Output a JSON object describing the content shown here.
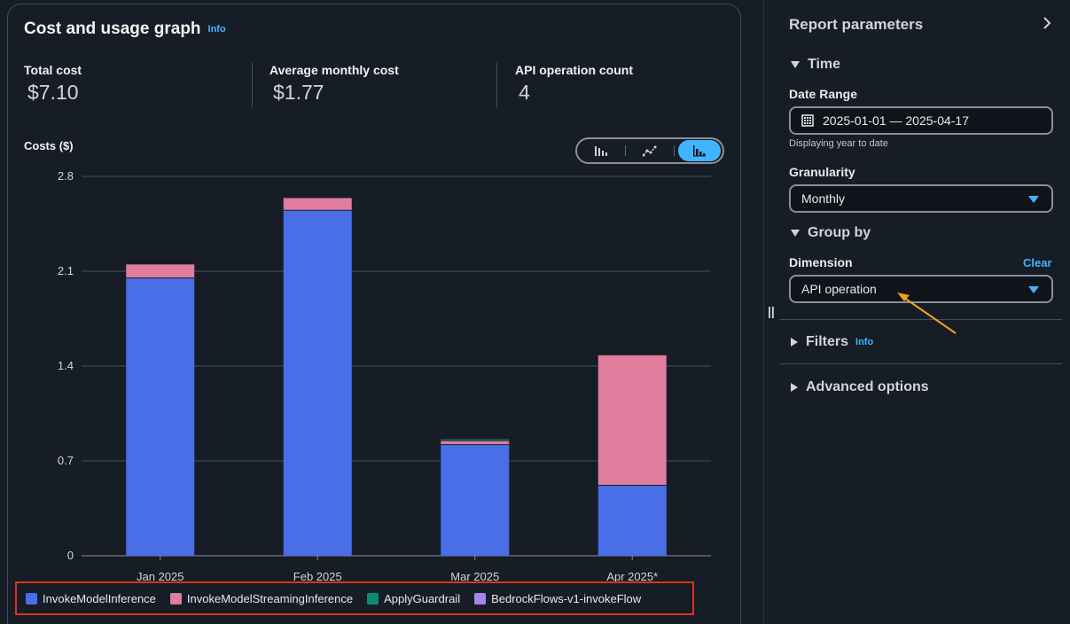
{
  "graph": {
    "title": "Cost and usage graph",
    "info_label": "Info",
    "stats": [
      {
        "label": "Total cost",
        "value": "$7.10"
      },
      {
        "label": "Average monthly cost",
        "value": "$1.77"
      },
      {
        "label": "API operation count",
        "value": "4"
      }
    ],
    "costs_label": "Costs ($)",
    "chart_types": [
      "bar-chart-icon",
      "line-chart-icon",
      "stacked-bar-chart-icon"
    ],
    "selected_chart_type": "stacked-bar-chart-icon"
  },
  "chart_data": {
    "type": "bar",
    "stacked": true,
    "categories": [
      "Jan 2025",
      "Feb 2025",
      "Mar 2025",
      "Apr 2025*"
    ],
    "series": [
      {
        "name": "InvokeModelInference",
        "color": "#4a6ee8",
        "values": [
          2.05,
          2.55,
          0.82,
          0.52
        ]
      },
      {
        "name": "InvokeModelStreamingInference",
        "color": "#e07c9e",
        "values": [
          0.1,
          0.09,
          0.03,
          0.96
        ]
      },
      {
        "name": "ApplyGuardrail",
        "color": "#0f8a72",
        "values": [
          0.0,
          0.0,
          0.01,
          0.0
        ]
      },
      {
        "name": "BedrockFlows-v1-invokeFlow",
        "color": "#a882ef",
        "values": [
          0.0,
          0.0,
          0.0,
          0.0
        ]
      }
    ],
    "yticks": [
      "0",
      "0.7",
      "1.4",
      "2.1",
      "2.8"
    ],
    "ylim": [
      0,
      2.8
    ],
    "ylabel": "Costs ($)",
    "grid": true
  },
  "params": {
    "title": "Report parameters",
    "time_section": "Time",
    "date_range_label": "Date Range",
    "date_range_value": "2025-01-01 — 2025-04-17",
    "date_range_hint": "Displaying year to date",
    "granularity_label": "Granularity",
    "granularity_value": "Monthly",
    "group_by_section": "Group by",
    "dimension_label": "Dimension",
    "clear_label": "Clear",
    "dimension_value": "API operation",
    "filters_section": "Filters",
    "filters_info": "Info",
    "advanced_section": "Advanced options"
  },
  "colors": {
    "accent": "#42b4ff",
    "annotation_arrow": "#f0a020",
    "legend_highlight": "#e0301e"
  }
}
